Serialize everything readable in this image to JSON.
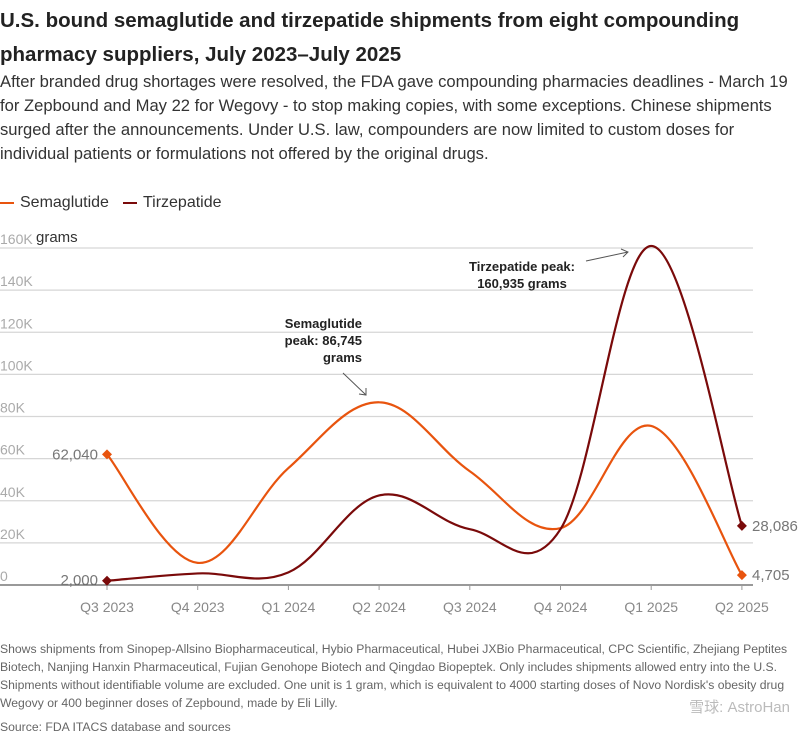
{
  "title": "U.S. bound semaglutide and tirzepatide shipments from eight compounding pharmacy suppliers, July 2023–July 2025",
  "subtitle": "After branded drug shortages were resolved, the FDA gave compounding pharmacies deadlines - March 19 for Zepbound and May 22 for Wegovy - to stop making copies, with some exceptions. Chinese shipments surged after the announcements. Under U.S. law, compounders are now limited to custom doses for individual patients or formulations not offered by the original drugs.",
  "notes": "Shows shipments from Sinopep-Allsino Biopharmaceutical, Hybio Pharmaceutical, Hubei JXBio Pharmaceutical, CPC Scientific, Zhejiang Peptites Biotech, Nanjing Hanxin Pharmaceutical, Fujian Genohope Biotech and Qingdao Biopeptek. Only includes shipments allowed entry into the U.S. Shipments without identifiable volume are excluded. One unit is 1 gram, which is equivalent to 4000 starting doses of Novo Nordisk's obesity drug Wegovy or 400 beginner doses of Zepbound, made by Eli Lilly.",
  "source": "Source: FDA ITACS database and sources",
  "watermark": "雪球: AstroHan",
  "chart_data": {
    "type": "line",
    "ylabel": "grams",
    "ylim": [
      0,
      160000
    ],
    "yticks": [
      0,
      20000,
      40000,
      60000,
      80000,
      100000,
      120000,
      140000,
      160000
    ],
    "ytick_labels": [
      "0",
      "20K",
      "40K",
      "60K",
      "80K",
      "100K",
      "120K",
      "140K",
      "160K"
    ],
    "grid": true,
    "legend_position": "top-left",
    "categories": [
      "Q3 2023",
      "Q4 2023",
      "Q1 2024",
      "Q2 2024",
      "Q3 2024",
      "Q4 2024",
      "Q1 2025",
      "Q2 2025"
    ],
    "series": [
      {
        "name": "Semaglutide",
        "color": "#e8540e",
        "values": [
          62040,
          10500,
          55500,
          86745,
          54000,
          27000,
          75500,
          4705
        ]
      },
      {
        "name": "Tirzepatide",
        "color": "#7a0a0a",
        "values": [
          2000,
          5500,
          6000,
          42500,
          26500,
          26500,
          160935,
          28086
        ]
      }
    ],
    "end_labels": {
      "semaglutide_start": "62,040",
      "tirzepatide_start": "2,000",
      "tirzepatide_end": "28,086",
      "semaglutide_end": "4,705"
    },
    "annotations": [
      {
        "lines": [
          "Semaglutide",
          "peak: 86,745",
          "grams"
        ]
      },
      {
        "lines": [
          "Tirzepatide peak:",
          "160,935 grams"
        ]
      }
    ]
  }
}
